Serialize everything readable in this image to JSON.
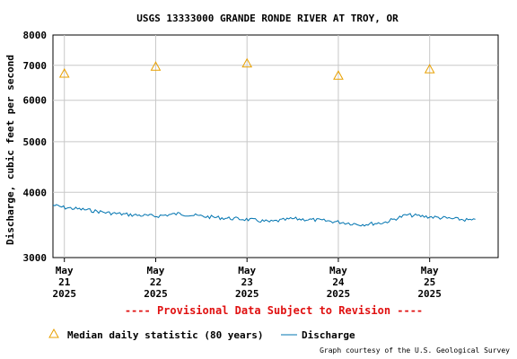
{
  "chart_data": {
    "type": "line",
    "title": "USGS 13333000 GRANDE RONDE RIVER AT TROY, OR",
    "ylabel": "Discharge, cubic feet per second",
    "xlabel": "",
    "y_scale": "log",
    "ylim": [
      3000,
      8000
    ],
    "y_ticks": [
      3000,
      4000,
      5000,
      6000,
      7000,
      8000
    ],
    "xlim": [
      "2025-05-20T21:00",
      "2025-05-25T18:00"
    ],
    "x_ticks": [
      {
        "t": "2025-05-21T00:00",
        "label": [
          "May",
          "21",
          "2025"
        ]
      },
      {
        "t": "2025-05-22T00:00",
        "label": [
          "May",
          "22",
          "2025"
        ]
      },
      {
        "t": "2025-05-23T00:00",
        "label": [
          "May",
          "23",
          "2025"
        ]
      },
      {
        "t": "2025-05-24T00:00",
        "label": [
          "May",
          "24",
          "2025"
        ]
      },
      {
        "t": "2025-05-25T00:00",
        "label": [
          "May",
          "25",
          "2025"
        ]
      }
    ],
    "grid": true,
    "series": [
      {
        "name": "Median daily statistic (80 years)",
        "kind": "marker-triangle",
        "color": "#e8a000",
        "points": [
          {
            "t": "2025-05-21T00:00",
            "y": 6750
          },
          {
            "t": "2025-05-22T00:00",
            "y": 6960
          },
          {
            "t": "2025-05-23T00:00",
            "y": 7060
          },
          {
            "t": "2025-05-24T00:00",
            "y": 6690
          },
          {
            "t": "2025-05-25T00:00",
            "y": 6880
          }
        ]
      },
      {
        "name": "Discharge",
        "kind": "line",
        "color": "#0074b0",
        "points": [
          {
            "t": "2025-05-20T21:00",
            "y": 3780
          },
          {
            "t": "2025-05-21T00:00",
            "y": 3740
          },
          {
            "t": "2025-05-21T06:00",
            "y": 3700
          },
          {
            "t": "2025-05-21T12:00",
            "y": 3650
          },
          {
            "t": "2025-05-21T18:00",
            "y": 3620
          },
          {
            "t": "2025-05-22T00:00",
            "y": 3600
          },
          {
            "t": "2025-05-22T06:00",
            "y": 3640
          },
          {
            "t": "2025-05-22T12:00",
            "y": 3600
          },
          {
            "t": "2025-05-22T18:00",
            "y": 3570
          },
          {
            "t": "2025-05-23T00:00",
            "y": 3550
          },
          {
            "t": "2025-05-23T06:00",
            "y": 3510
          },
          {
            "t": "2025-05-23T12:00",
            "y": 3560
          },
          {
            "t": "2025-05-23T18:00",
            "y": 3540
          },
          {
            "t": "2025-05-24T00:00",
            "y": 3510
          },
          {
            "t": "2025-05-24T06:00",
            "y": 3470
          },
          {
            "t": "2025-05-24T12:00",
            "y": 3500
          },
          {
            "t": "2025-05-24T18:00",
            "y": 3620
          },
          {
            "t": "2025-05-25T00:00",
            "y": 3590
          },
          {
            "t": "2025-05-25T06:00",
            "y": 3560
          },
          {
            "t": "2025-05-25T12:00",
            "y": 3530
          }
        ]
      }
    ],
    "legend_position": "bottom"
  },
  "provisional_notice": "---- Provisional Data Subject to Revision ----",
  "legend": {
    "median_label": "Median daily statistic (80 years)",
    "discharge_label": "Discharge"
  },
  "credit": "Graph courtesy of the U.S. Geological Survey"
}
